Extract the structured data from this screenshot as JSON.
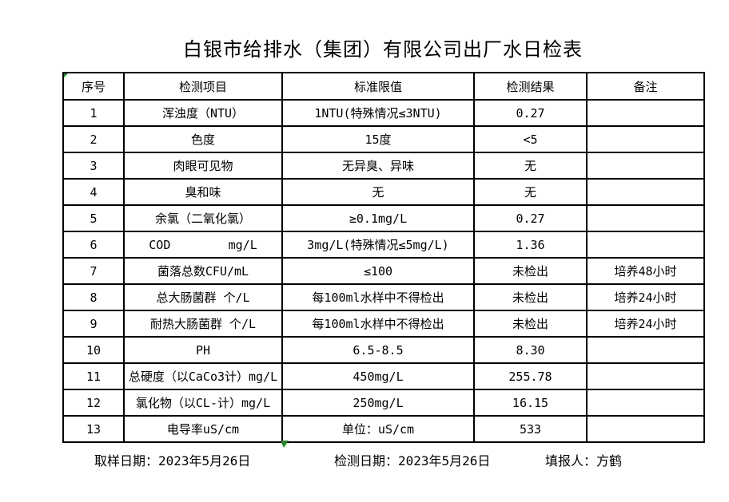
{
  "title": "白银市给排水（集团）有限公司出厂水日检表",
  "table": {
    "headers": [
      "序号",
      "检测项目",
      "标准限值",
      "检测结果",
      "备注"
    ],
    "rows": [
      {
        "no": "1",
        "item": "浑浊度（NTU）",
        "standard": "1NTU(特殊情况≤3NTU)",
        "result": "0.27",
        "remark": ""
      },
      {
        "no": "2",
        "item": "色度",
        "standard": "15度",
        "result": "<5",
        "remark": ""
      },
      {
        "no": "3",
        "item": "肉眼可见物",
        "standard": "无异臭、异味",
        "result": "无",
        "remark": ""
      },
      {
        "no": "4",
        "item": "臭和味",
        "standard": "无",
        "result": "无",
        "remark": ""
      },
      {
        "no": "5",
        "item": "余氯（二氧化氯）",
        "standard": "≥0.1mg/L",
        "result": "0.27",
        "remark": ""
      },
      {
        "no": "6",
        "item": "COD        mg/L",
        "standard": "3mg/L(特殊情况≤5mg/L)",
        "result": "1.36",
        "remark": ""
      },
      {
        "no": "7",
        "item": "菌落总数CFU/mL",
        "standard": "≤100",
        "result": "未检出",
        "remark": "培养48小时"
      },
      {
        "no": "8",
        "item": "总大肠菌群 个/L",
        "standard": "每100ml水样中不得检出",
        "result": "未检出",
        "remark": "培养24小时"
      },
      {
        "no": "9",
        "item": "耐热大肠菌群 个/L",
        "standard": "每100ml水样中不得检出",
        "result": "未检出",
        "remark": "培养24小时"
      },
      {
        "no": "10",
        "item": "PH",
        "standard": "6.5-8.5",
        "result": "8.30",
        "remark": ""
      },
      {
        "no": "11",
        "item": "总硬度（以CaCo3计）mg/L",
        "standard": "450mg/L",
        "result": "255.78",
        "remark": ""
      },
      {
        "no": "12",
        "item": "氯化物（以CL-计）mg/L",
        "standard": "250mg/L",
        "result": "16.15",
        "remark": ""
      },
      {
        "no": "13",
        "item": "电导率uS/cm",
        "standard": "单位：uS/cm",
        "result": "533",
        "remark": ""
      }
    ]
  },
  "footer": {
    "sampling_date": "取样日期：2023年5月26日",
    "test_date": "检测日期：2023年5月26日",
    "reporter": "填报人：方鹤"
  },
  "colors": {
    "background": "#ffffff",
    "border": "#000000",
    "text": "#000000",
    "marker_green": "#1e8b1e"
  }
}
